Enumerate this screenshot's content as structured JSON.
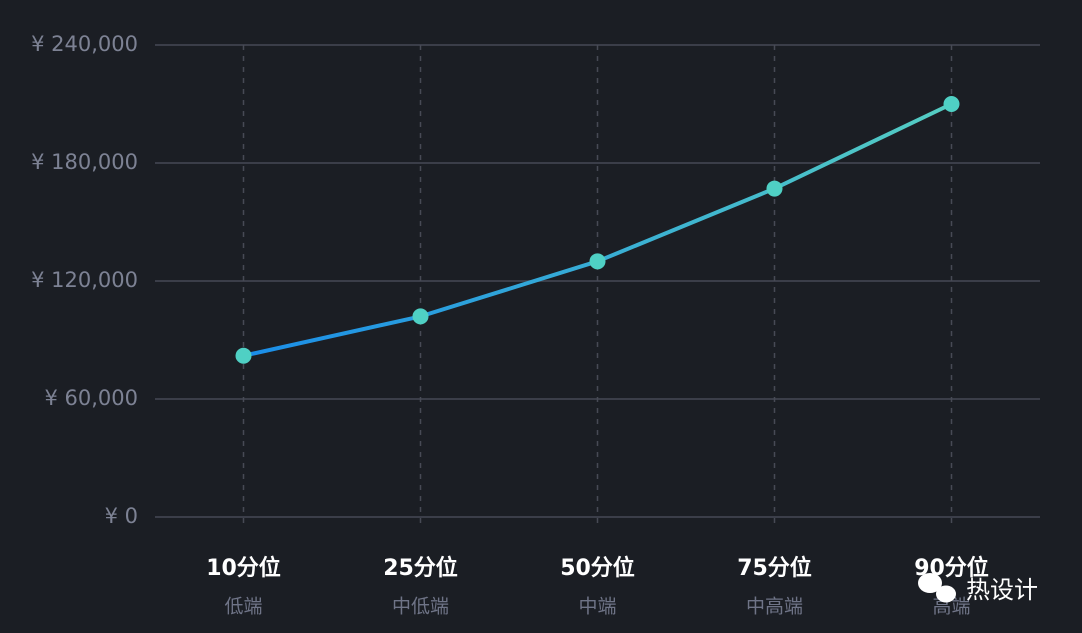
{
  "chart_data": {
    "type": "line",
    "categories": [
      "10分位",
      "25分位",
      "50分位",
      "75分位",
      "90分位"
    ],
    "subcategories": [
      "低端",
      "中低端",
      "中端",
      "中高端",
      "高端"
    ],
    "values": [
      82000,
      102000,
      130000,
      167000,
      210000
    ],
    "colors": [
      "#1a8de8",
      "#55cdc2"
    ],
    "marker_color": "#4fd0c4",
    "ylim": [
      0,
      240000
    ],
    "yticks": [
      {
        "value": 0,
        "label": "¥ 0"
      },
      {
        "value": 60000,
        "label": "¥ 60,000"
      },
      {
        "value": 120000,
        "label": "¥ 120,000"
      },
      {
        "value": 180000,
        "label": "¥ 180,000"
      },
      {
        "value": 240000,
        "label": "¥ 240,000"
      }
    ],
    "grid": true
  },
  "watermark": "热设计"
}
